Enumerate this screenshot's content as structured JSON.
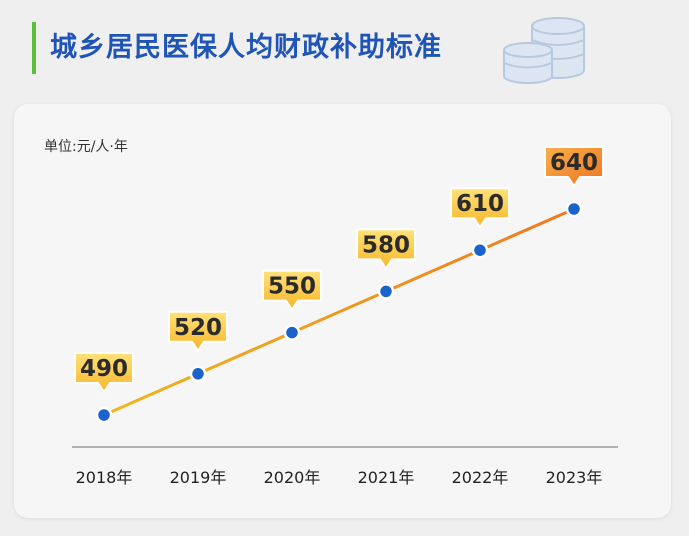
{
  "title": "城乡居民医保人均财政补助标准",
  "icon": "coin-stack-icon",
  "colors": {
    "title": "#1f55b6",
    "accent_bar": "#5cbf3a",
    "line_start": "#f0b61e",
    "line_end": "#ee7a1f",
    "point": "#1a63cc",
    "label_light": "#ffcf4a",
    "label_dark": "#f08a2a"
  },
  "chart_data": {
    "type": "line",
    "unit": "单位:元/人·年",
    "categories": [
      "2018年",
      "2019年",
      "2020年",
      "2021年",
      "2022年",
      "2023年"
    ],
    "values": [
      490,
      520,
      550,
      580,
      610,
      640
    ],
    "data_labels": [
      "490",
      "520",
      "550",
      "580",
      "610",
      "640"
    ],
    "grid": false,
    "legend": "none"
  }
}
